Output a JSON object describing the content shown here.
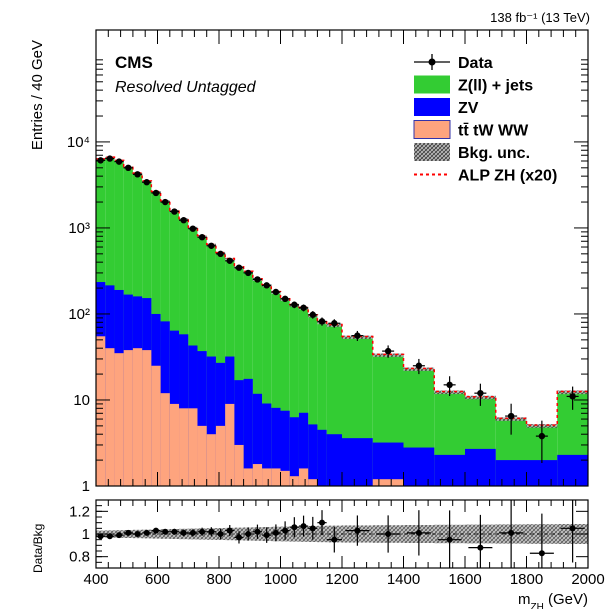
{
  "chart_data": {
    "type": "bar",
    "stacked": true,
    "lumi_label": "138 fb⁻¹ (13 TeV)",
    "cms_label": "CMS",
    "category_label": "Resolved Untagged",
    "ylabel": "Entries / 40 GeV",
    "xlabel": "m",
    "xlabel_sub": "ZH",
    "xlabel_unit": " (GeV)",
    "ratio_ylabel": "Data/Bkg",
    "x_scale": "linear",
    "y_scale": "log",
    "xlim": [
      400,
      2000
    ],
    "ylim": [
      1,
      200000
    ],
    "ratio_ylim": [
      0.7,
      1.3
    ],
    "x_ticks": [
      "400",
      "600",
      "800",
      "1000",
      "1200",
      "1400",
      "1600",
      "1800",
      "2000"
    ],
    "y_ticks": [
      "1",
      "10",
      "10²",
      "10³",
      "10⁴"
    ],
    "ratio_ticks": [
      "0.8",
      "1",
      "1.2"
    ],
    "legend_position": "top-right",
    "bin_edges": [
      400,
      430,
      460,
      490,
      520,
      550,
      580,
      610,
      640,
      670,
      700,
      730,
      760,
      790,
      820,
      850,
      880,
      910,
      940,
      970,
      1000,
      1030,
      1060,
      1090,
      1120,
      1150,
      1200,
      1300,
      1400,
      1500,
      1600,
      1700,
      1800,
      1900,
      2000
    ],
    "series": [
      {
        "name": "tt̄ tW WW",
        "color": "#fea47e",
        "values": [
          55,
          40,
          35,
          38,
          40,
          38,
          25,
          12,
          9,
          8,
          8,
          5,
          4,
          5,
          9,
          3,
          1.6,
          1.8,
          1.6,
          1.6,
          1.5,
          1.3,
          1.6,
          1.2,
          1,
          1,
          1,
          1.2,
          1,
          1,
          1,
          1,
          1,
          1
        ]
      },
      {
        "name": "ZV",
        "color": "#0000ff",
        "values": [
          180,
          175,
          155,
          130,
          120,
          115,
          75,
          70,
          55,
          50,
          35,
          32,
          28,
          22,
          23,
          14,
          16,
          10,
          7.5,
          6.5,
          6,
          5,
          5.5,
          4,
          3.5,
          3,
          2.6,
          2,
          1.8,
          1.3,
          1.7,
          1,
          1,
          1.3
        ]
      },
      {
        "name": "Z(ll) + jets",
        "color": "#33cc33",
        "values": [
          6000,
          6300,
          5800,
          4900,
          4100,
          3300,
          2500,
          1950,
          1500,
          1200,
          950,
          760,
          600,
          480,
          400,
          330,
          290,
          240,
          205,
          170,
          140,
          120,
          110,
          90,
          75,
          70,
          50,
          30,
          20,
          10,
          8,
          4,
          3,
          10
        ]
      }
    ],
    "data_series": {
      "name": "Data",
      "x": [
        415,
        445,
        475,
        505,
        535,
        565,
        595,
        625,
        655,
        685,
        715,
        745,
        775,
        805,
        835,
        865,
        895,
        925,
        955,
        985,
        1015,
        1045,
        1075,
        1105,
        1135,
        1175,
        1250,
        1350,
        1450,
        1550,
        1650,
        1750,
        1850,
        1950
      ],
      "y": [
        6100,
        6400,
        5900,
        5000,
        4200,
        3400,
        2550,
        2000,
        1550,
        1230,
        980,
        780,
        620,
        500,
        415,
        345,
        300,
        252,
        215,
        180,
        150,
        128,
        118,
        98,
        82,
        78,
        56,
        37,
        25,
        15,
        12,
        6.5,
        3.8,
        11
      ]
    },
    "signal_series": {
      "name": "ALP ZH (x20)",
      "color": "#ff0000"
    },
    "uncertainty_label": "Bkg. unc.",
    "ratio": {
      "x": [
        415,
        445,
        475,
        505,
        535,
        565,
        595,
        625,
        655,
        685,
        715,
        745,
        775,
        805,
        835,
        865,
        895,
        925,
        955,
        985,
        1015,
        1045,
        1075,
        1105,
        1135,
        1175,
        1250,
        1350,
        1450,
        1550,
        1650,
        1750,
        1850,
        1950
      ],
      "y": [
        0.98,
        0.98,
        0.99,
        1.01,
        1.0,
        1.01,
        1.03,
        1.02,
        1.02,
        1.01,
        1.01,
        1.02,
        1.02,
        1.0,
        1.03,
        0.97,
        1.0,
        1.02,
        0.99,
        1.01,
        1.03,
        1.06,
        1.07,
        1.05,
        1.1,
        0.95,
        1.03,
        1.0,
        1.01,
        0.95,
        0.88,
        1.01,
        0.83,
        1.05
      ]
    }
  }
}
